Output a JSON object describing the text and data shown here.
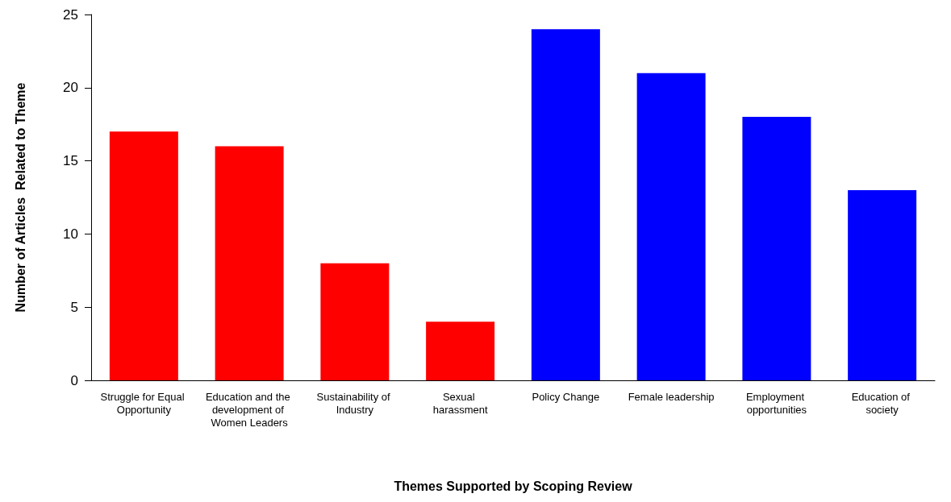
{
  "chart_data": {
    "type": "bar",
    "xlabel": "Themes Supported by Scoping Review",
    "ylabel": "Number of Articles  Related to Theme",
    "categories": [
      "Struggle for Equal Opportunity",
      "Education and the development of Women Leaders",
      "Sustainability of Industry",
      "Sexual harassment",
      "Policy Change",
      "Female leadership",
      "Employment opportunities",
      "Education of society"
    ],
    "values": [
      17,
      16,
      8,
      4,
      24,
      21,
      18,
      13
    ],
    "colors": [
      "#ff0000",
      "#ff0000",
      "#ff0000",
      "#ff0000",
      "#0000ff",
      "#0000ff",
      "#0000ff",
      "#0000ff"
    ],
    "ylim": [
      0,
      25
    ],
    "yticks": [
      0,
      5,
      10,
      15,
      20,
      25
    ],
    "grid": false
  }
}
